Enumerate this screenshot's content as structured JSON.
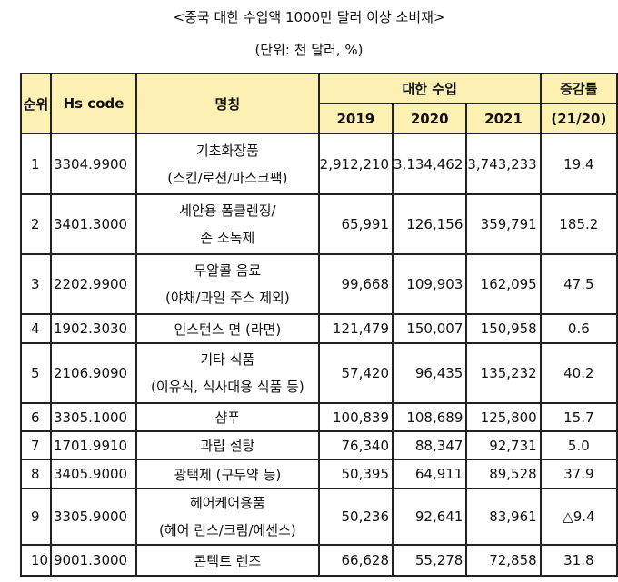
{
  "title": "<중국 대한 수입액 1000만 달러 이상 소비재>",
  "unit": "(단위: 천 달러, %)",
  "headers": {
    "rank": "순위",
    "hs": "Hs code",
    "name": "명칭",
    "import": "대한 수입",
    "y2019": "2019",
    "y2020": "2020",
    "y2021": "2021",
    "change": "증감률",
    "change_period": "(21/20)"
  },
  "rows": [
    {
      "rank": "1",
      "hs": "3304.9900",
      "name": [
        "기초화장품",
        "(스킨/로션/마스크팩)"
      ],
      "v2019": "2,912,210",
      "v2020": "3,134,462",
      "v2021": "3,743,233",
      "change": "19.4"
    },
    {
      "rank": "2",
      "hs": "3401.3000",
      "name": [
        "세안용 폼클렌징/",
        "손 소독제"
      ],
      "v2019": "65,991",
      "v2020": "126,156",
      "v2021": "359,791",
      "change": "185.2"
    },
    {
      "rank": "3",
      "hs": "2202.9900",
      "name": [
        "무알콜 음료",
        "(야채/과일 주스 제외)"
      ],
      "v2019": "99,668",
      "v2020": "109,903",
      "v2021": "162,095",
      "change": "47.5"
    },
    {
      "rank": "4",
      "hs": "1902.3030",
      "name": [
        "인스턴스 면 (라면)"
      ],
      "v2019": "121,479",
      "v2020": "150,007",
      "v2021": "150,958",
      "change": "0.6"
    },
    {
      "rank": "5",
      "hs": "2106.9090",
      "name": [
        "기타 식품",
        "(이유식, 식사대용 식품 등)"
      ],
      "v2019": "57,420",
      "v2020": "96,435",
      "v2021": "135,232",
      "change": "40.2"
    },
    {
      "rank": "6",
      "hs": "3305.1000",
      "name": [
        "샴푸"
      ],
      "v2019": "100,839",
      "v2020": "108,689",
      "v2021": "125,800",
      "change": "15.7"
    },
    {
      "rank": "7",
      "hs": "1701.9910",
      "name": [
        "과립 설탕"
      ],
      "v2019": "76,340",
      "v2020": "88,347",
      "v2021": "92,731",
      "change": "5.0"
    },
    {
      "rank": "8",
      "hs": "3405.9000",
      "name": [
        "광택제 (구두약 등)"
      ],
      "v2019": "50,395",
      "v2020": "64,911",
      "v2021": "89,528",
      "change": "37.9"
    },
    {
      "rank": "9",
      "hs": "3305.9000",
      "name": [
        "헤어케어용품",
        "(헤어 린스/크림/에센스)"
      ],
      "v2019": "50,236",
      "v2020": "92,641",
      "v2021": "83,961",
      "change": "△9.4"
    },
    {
      "rank": "10",
      "hs": "9001.3000",
      "name": [
        "콘텍트 렌즈"
      ],
      "v2019": "66,628",
      "v2020": "55,278",
      "v2021": "72,858",
      "change": "31.8"
    }
  ]
}
